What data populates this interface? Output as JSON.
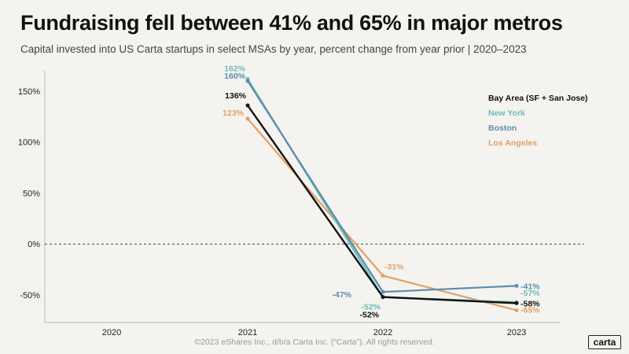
{
  "header": {
    "title": "Fundraising fell between 41% and 65% in major metros",
    "subtitle": "Capital invested into US Carta startups in select MSAs by year, percent change from year prior  |  2020–2023"
  },
  "footer": {
    "copyright": "©2023 eShares Inc., d/b/a Carta Inc. (“Carta”). All rights reserved.",
    "logo": "carta"
  },
  "chart_data": {
    "type": "line",
    "title": "Fundraising fell between 41% and 65% in major metros",
    "xlabel": "",
    "ylabel": "",
    "categories": [
      "2020",
      "2021",
      "2022",
      "2023"
    ],
    "ylim": [
      -77,
      170
    ],
    "yticks": [
      150,
      100,
      50,
      0,
      -50
    ],
    "ytick_labels": [
      "150%",
      "100%",
      "50%",
      "0%",
      "-50%"
    ],
    "zero_line": "dashed",
    "legend_position": "top-right",
    "series": [
      {
        "name": "New York",
        "color": "#6bbfb5",
        "values": [
          null,
          162,
          -52,
          -57
        ],
        "labels": [
          "",
          "162%",
          "-52%",
          "-57%"
        ]
      },
      {
        "name": "Boston",
        "color": "#5a8db0",
        "values": [
          null,
          160,
          -47,
          -41
        ],
        "labels": [
          "",
          "160%",
          "-47%",
          "-41%"
        ]
      },
      {
        "name": "Los Angeles",
        "color": "#e0a068",
        "values": [
          null,
          123,
          -31,
          -65
        ],
        "labels": [
          "",
          "123%",
          "-31%",
          "-65%"
        ]
      },
      {
        "name": "Bay Area (SF + San Jose)",
        "color": "#111111",
        "values": [
          null,
          136,
          -52,
          -58
        ],
        "labels": [
          "",
          "136%",
          "-52%",
          "-58%"
        ]
      }
    ],
    "legend_order": [
      "Bay Area (SF + San Jose)",
      "New York",
      "Boston",
      "Los Angeles"
    ]
  }
}
